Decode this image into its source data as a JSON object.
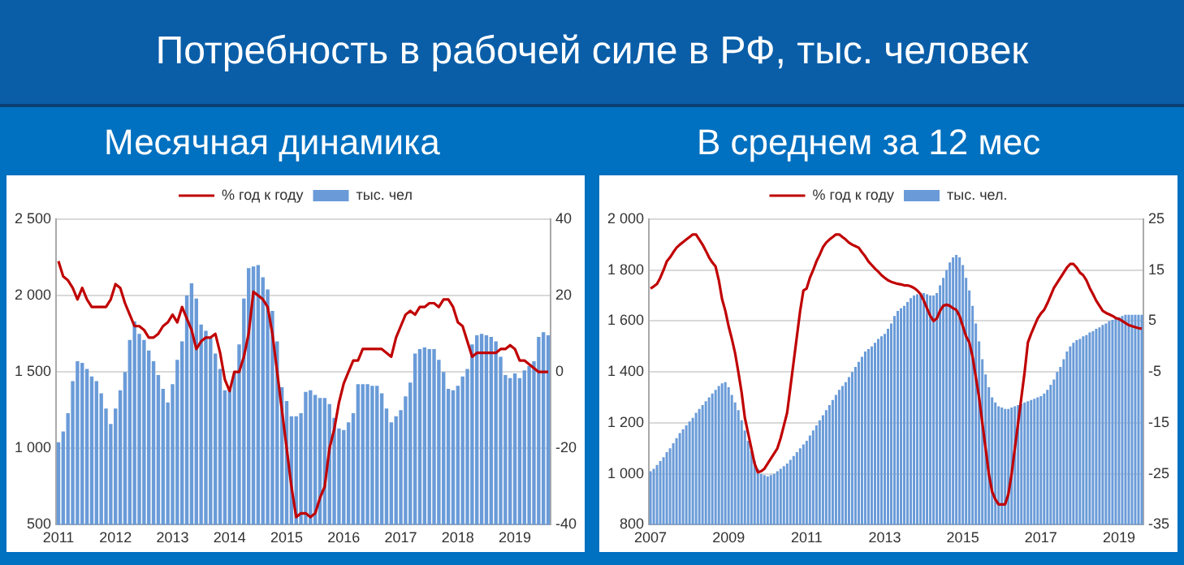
{
  "chart_data": [
    {
      "type": "bar",
      "title": "Потребность в рабочей силе в РФ, тыс. человек",
      "subtitle": "Месячная динамика",
      "categories": [
        "2011",
        null,
        null,
        null,
        null,
        null,
        null,
        null,
        null,
        null,
        null,
        null,
        "2012",
        null,
        null,
        null,
        null,
        null,
        null,
        null,
        null,
        null,
        null,
        null,
        "2013",
        null,
        null,
        null,
        null,
        null,
        null,
        null,
        null,
        null,
        null,
        null,
        "2014",
        null,
        null,
        null,
        null,
        null,
        null,
        null,
        null,
        null,
        null,
        null,
        "2015",
        null,
        null,
        null,
        null,
        null,
        null,
        null,
        null,
        null,
        null,
        null,
        "2016",
        null,
        null,
        null,
        null,
        null,
        null,
        null,
        null,
        null,
        null,
        null,
        "2017",
        null,
        null,
        null,
        null,
        null,
        null,
        null,
        null,
        null,
        null,
        null,
        "2018",
        null,
        null,
        null,
        null,
        null,
        null,
        null,
        null,
        null,
        null,
        null,
        "2019",
        null,
        null,
        null,
        null,
        null,
        null,
        null
      ],
      "series": [
        {
          "name": "тыс. чел",
          "color": "#6a9bd8",
          "values": [
            1040,
            1110,
            1230,
            1440,
            1570,
            1560,
            1520,
            1470,
            1440,
            1360,
            1260,
            1160,
            1260,
            1380,
            1500,
            1710,
            1830,
            1750,
            1710,
            1640,
            1570,
            1480,
            1390,
            1300,
            1420,
            1580,
            1700,
            2000,
            2080,
            1980,
            1810,
            1770,
            1720,
            1620,
            1520,
            1380,
            1400,
            1490,
            1680,
            1980,
            2180,
            2190,
            2200,
            2120,
            2040,
            1900,
            1700,
            1400,
            1310,
            1210,
            1210,
            1230,
            1370,
            1380,
            1350,
            1330,
            1330,
            1290,
            1200,
            1130,
            1120,
            1170,
            1230,
            1420,
            1420,
            1420,
            1410,
            1410,
            1360,
            1260,
            1170,
            1210,
            1250,
            1340,
            1430,
            1620,
            1650,
            1660,
            1650,
            1650,
            1580,
            1500,
            1390,
            1380,
            1410,
            1470,
            1520,
            1680,
            1740,
            1750,
            1740,
            1730,
            1700,
            1600,
            1480,
            1460,
            1490,
            1460,
            1510,
            1540,
            1570,
            1730,
            1760,
            1740
          ]
        },
        {
          "name": "% год к году",
          "type": "line",
          "axis": "y2",
          "color": "#c00000",
          "values": [
            29,
            25,
            24,
            22,
            19,
            22,
            19,
            17,
            17,
            17,
            17,
            19,
            23,
            22,
            18,
            15,
            12,
            12,
            11,
            9,
            9,
            10,
            12,
            13,
            15,
            13,
            17,
            14,
            11,
            6,
            8,
            9,
            9,
            10,
            5,
            -2,
            -5,
            0,
            0,
            4,
            10,
            21,
            20,
            19,
            17,
            10,
            0,
            -10,
            -20,
            -30,
            -38,
            -37,
            -37,
            -38,
            -37,
            -33,
            -30,
            -20,
            -15,
            -8,
            -3,
            0,
            3,
            3,
            6,
            6,
            6,
            6,
            6,
            5,
            4,
            9,
            12,
            15,
            16,
            15,
            17,
            17,
            18,
            18,
            17,
            19,
            19,
            17,
            13,
            12,
            8,
            4,
            5,
            5,
            5,
            5,
            5,
            6,
            6,
            7,
            6,
            3,
            3,
            2,
            1,
            0,
            0,
            0
          ]
        }
      ],
      "ylim": [
        500,
        2500
      ],
      "yticks": [
        {
          "value": 500,
          "label": "500"
        },
        {
          "value": 1000,
          "label": "1 000"
        },
        {
          "value": 1500,
          "label": "1 500"
        },
        {
          "value": 2000,
          "label": "2 000"
        },
        {
          "value": 2500,
          "label": "2 500"
        }
      ],
      "y2lim": [
        -40,
        40
      ],
      "y2ticks": [
        -40,
        -20,
        0,
        20,
        40
      ],
      "grid": "y",
      "legend": "top"
    },
    {
      "type": "bar",
      "subtitle": "В среднем за 12 мес",
      "categories": [
        "2007",
        null,
        null,
        null,
        null,
        null,
        null,
        null,
        null,
        null,
        null,
        null,
        null,
        null,
        null,
        null,
        null,
        null,
        null,
        null,
        null,
        null,
        null,
        null,
        "2009",
        null,
        null,
        null,
        null,
        null,
        null,
        null,
        null,
        null,
        null,
        null,
        null,
        null,
        null,
        null,
        null,
        null,
        null,
        null,
        null,
        null,
        null,
        null,
        "2011",
        null,
        null,
        null,
        null,
        null,
        null,
        null,
        null,
        null,
        null,
        null,
        null,
        null,
        null,
        null,
        null,
        null,
        null,
        null,
        null,
        null,
        null,
        null,
        "2013",
        null,
        null,
        null,
        null,
        null,
        null,
        null,
        null,
        null,
        null,
        null,
        null,
        null,
        null,
        null,
        null,
        null,
        null,
        null,
        null,
        null,
        null,
        null,
        "2015",
        null,
        null,
        null,
        null,
        null,
        null,
        null,
        null,
        null,
        null,
        null,
        null,
        null,
        null,
        null,
        null,
        null,
        null,
        null,
        null,
        null,
        null,
        null,
        "2017",
        null,
        null,
        null,
        null,
        null,
        null,
        null,
        null,
        null,
        null,
        null,
        null,
        null,
        null,
        null,
        null,
        null,
        null,
        null,
        null,
        null,
        null,
        null,
        "2019",
        null,
        null,
        null,
        null,
        null,
        null,
        null
      ],
      "series": [
        {
          "name": "тыс. чел.",
          "color": "#6a9bd8",
          "values": [
            1010,
            1020,
            1035,
            1050,
            1065,
            1085,
            1100,
            1120,
            1140,
            1160,
            1175,
            1190,
            1205,
            1220,
            1240,
            1255,
            1270,
            1285,
            1300,
            1315,
            1330,
            1345,
            1355,
            1360,
            1340,
            1310,
            1280,
            1250,
            1210,
            1170,
            1130,
            1090,
            1050,
            1020,
            1000,
            995,
            990,
            995,
            1000,
            1010,
            1020,
            1030,
            1040,
            1055,
            1070,
            1085,
            1100,
            1115,
            1130,
            1150,
            1170,
            1190,
            1210,
            1230,
            1250,
            1270,
            1290,
            1310,
            1330,
            1345,
            1360,
            1380,
            1400,
            1420,
            1440,
            1460,
            1480,
            1490,
            1500,
            1515,
            1530,
            1540,
            1550,
            1570,
            1590,
            1620,
            1640,
            1650,
            1660,
            1675,
            1690,
            1700,
            1705,
            1710,
            1710,
            1705,
            1700,
            1700,
            1710,
            1740,
            1770,
            1800,
            1830,
            1850,
            1860,
            1850,
            1820,
            1770,
            1720,
            1660,
            1590,
            1520,
            1450,
            1390,
            1340,
            1300,
            1280,
            1265,
            1260,
            1255,
            1255,
            1260,
            1265,
            1270,
            1275,
            1280,
            1285,
            1290,
            1295,
            1300,
            1305,
            1315,
            1330,
            1350,
            1370,
            1400,
            1420,
            1450,
            1480,
            1500,
            1515,
            1525,
            1530,
            1540,
            1545,
            1555,
            1560,
            1570,
            1575,
            1585,
            1590,
            1600,
            1605,
            1610,
            1615,
            1620,
            1625,
            1625,
            1625,
            1625,
            1625,
            1625
          ]
        },
        {
          "name": "% год к году",
          "type": "line",
          "axis": "y2",
          "color": "#c00000",
          "values": [
            11.4,
            11.8,
            12.3,
            13.5,
            15,
            16.7,
            17.5,
            18.5,
            19.4,
            20,
            20.5,
            21,
            21.5,
            22,
            22,
            21,
            20,
            18.8,
            17.5,
            16.5,
            15.7,
            13,
            9.3,
            7,
            4,
            1.5,
            -1.3,
            -5,
            -9,
            -14,
            -17,
            -20,
            -23,
            -24.7,
            -24.5,
            -24,
            -23,
            -22,
            -21,
            -20,
            -18,
            -15.5,
            -13,
            -8,
            -3,
            2,
            7,
            11,
            11.4,
            13.5,
            15,
            16.7,
            18,
            19.5,
            20.4,
            21,
            21.5,
            22,
            22,
            21.5,
            21,
            20.4,
            20,
            19.7,
            19.4,
            18.5,
            17.7,
            16.7,
            16,
            15.3,
            14.7,
            14,
            13.5,
            13,
            12.7,
            12.5,
            12.3,
            12.2,
            12,
            12,
            11.8,
            11.5,
            11,
            10.3,
            9,
            7.5,
            6,
            5,
            5.5,
            7,
            8,
            8.2,
            8,
            7.5,
            7.2,
            6,
            4,
            2,
            0.8,
            -2,
            -6,
            -10,
            -15,
            -20,
            -25,
            -28.5,
            -30,
            -31,
            -31,
            -31,
            -29,
            -25,
            -20,
            -15,
            -10,
            -5,
            0.8,
            2.5,
            4,
            5.5,
            6.5,
            7.2,
            8.5,
            10,
            11.5,
            12.5,
            13.5,
            14.5,
            15.5,
            16.2,
            16.2,
            15.5,
            14.5,
            14,
            13,
            11.5,
            10.3,
            9,
            8,
            7,
            6.6,
            6.3,
            6,
            5.6,
            5.4,
            5,
            4.6,
            4.2,
            4,
            3.8,
            3.6,
            3.5
          ]
        }
      ],
      "ylim": [
        800,
        2000
      ],
      "yticks": [
        {
          "value": 800,
          "label": "800"
        },
        {
          "value": 1000,
          "label": "1 000"
        },
        {
          "value": 1200,
          "label": "1 200"
        },
        {
          "value": 1400,
          "label": "1 400"
        },
        {
          "value": 1600,
          "label": "1 600"
        },
        {
          "value": 1800,
          "label": "1 800"
        },
        {
          "value": 2000,
          "label": "2 000"
        }
      ],
      "y2lim": [
        -35,
        25
      ],
      "y2ticks": [
        -35,
        -25,
        -15,
        -5,
        5,
        15,
        25
      ],
      "grid": "y",
      "legend": "top"
    }
  ]
}
